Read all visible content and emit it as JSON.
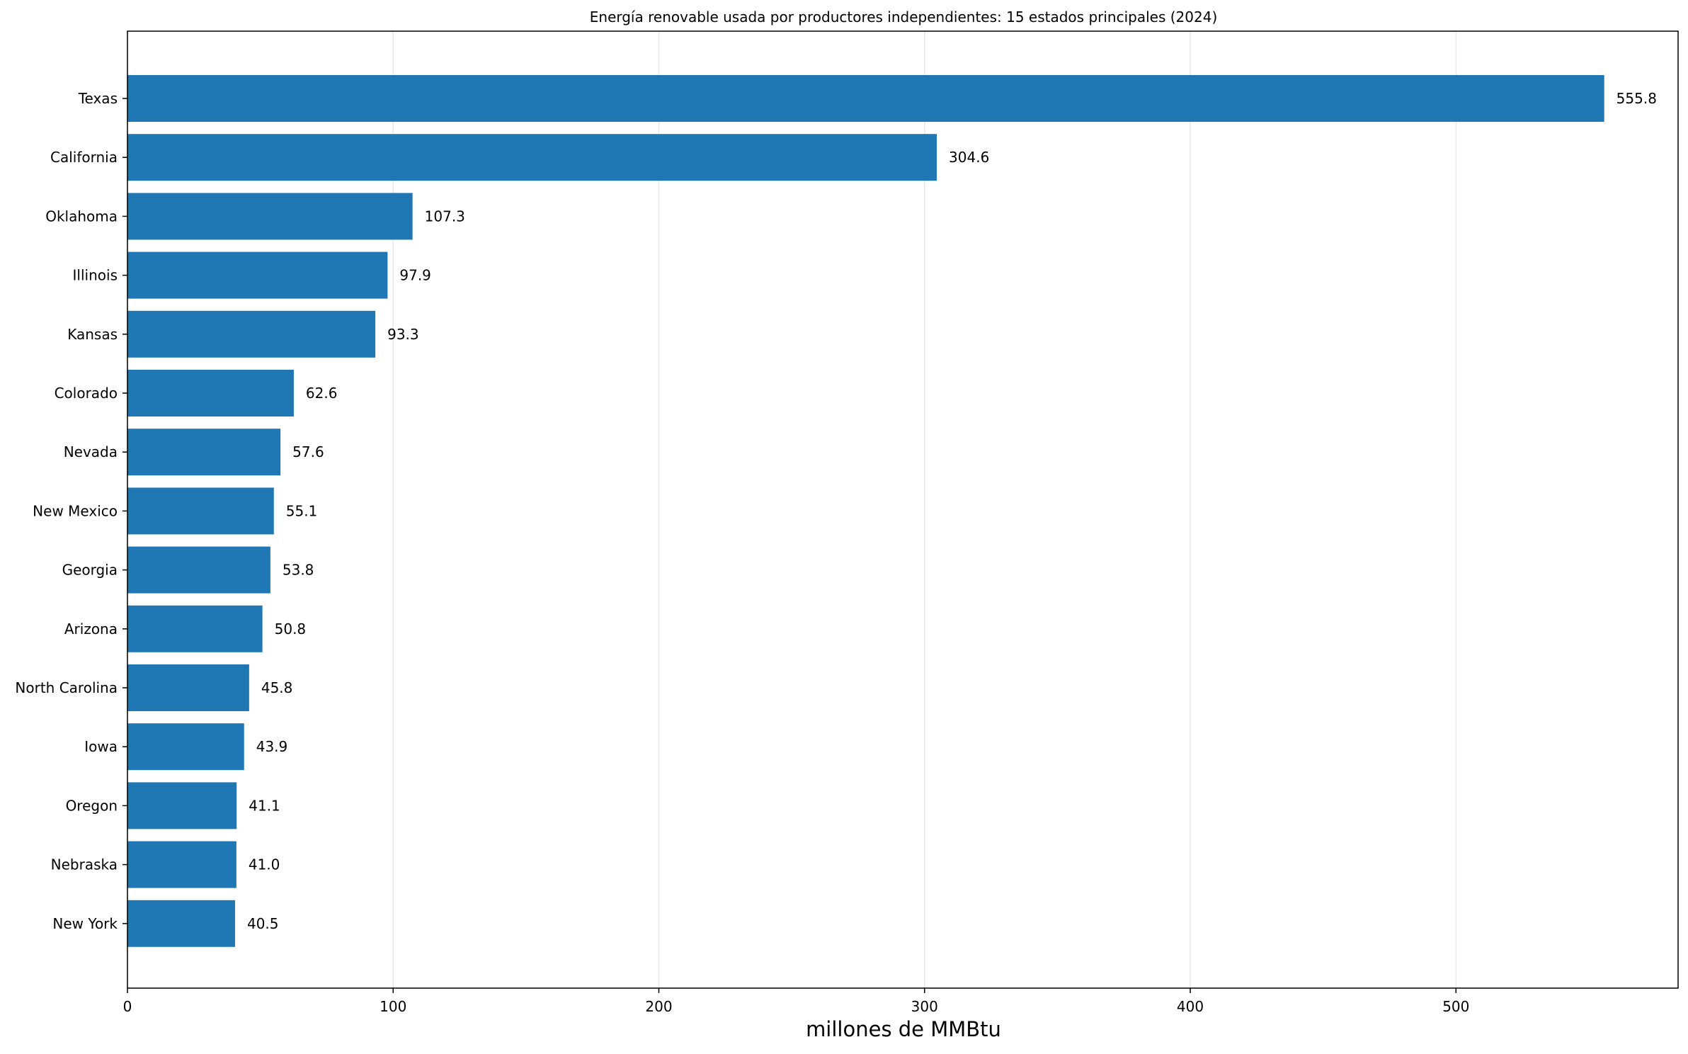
{
  "chart_data": {
    "type": "bar",
    "orientation": "horizontal",
    "title": "Energía renovable usada por productores independientes: 15 estados principales (2024)",
    "xlabel": "millones de MMBtu",
    "ylabel": "",
    "xlim": [
      0,
      583.6
    ],
    "xticks": [
      0,
      100,
      200,
      300,
      400,
      500
    ],
    "grid": "x",
    "bar_color": "#1f77b4",
    "categories": [
      "Texas",
      "California",
      "Oklahoma",
      "Illinois",
      "Kansas",
      "Colorado",
      "Nevada",
      "New Mexico",
      "Georgia",
      "Arizona",
      "North Carolina",
      "Iowa",
      "Oregon",
      "Nebraska",
      "New York"
    ],
    "values": [
      555.8,
      304.6,
      107.3,
      97.9,
      93.3,
      62.6,
      57.6,
      55.1,
      53.8,
      50.8,
      45.8,
      43.9,
      41.1,
      41.0,
      40.5
    ],
    "value_labels": [
      "555.8",
      "304.6",
      "107.3",
      "97.9",
      "93.3",
      "62.6",
      "57.6",
      "55.1",
      "53.8",
      "50.8",
      "45.8",
      "43.9",
      "41.1",
      "41.0",
      "40.5"
    ]
  }
}
